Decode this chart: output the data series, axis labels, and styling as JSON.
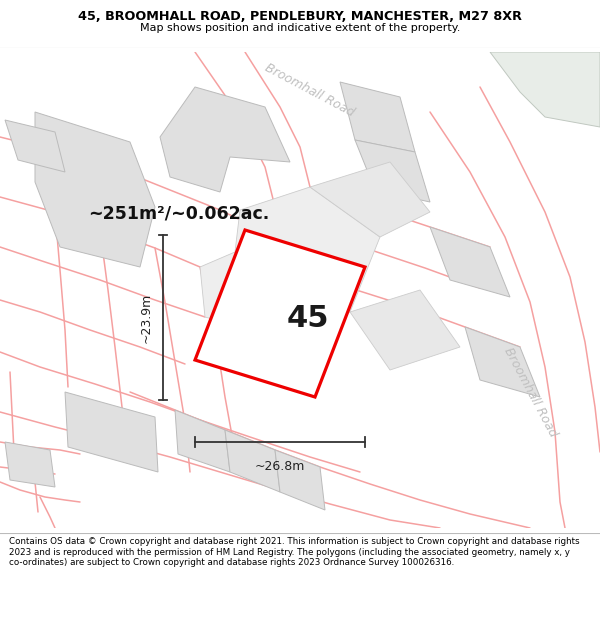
{
  "title": "45, BROOMHALL ROAD, PENDLEBURY, MANCHESTER, M27 8XR",
  "subtitle": "Map shows position and indicative extent of the property.",
  "footer": "Contains OS data © Crown copyright and database right 2021. This information is subject to Crown copyright and database rights 2023 and is reproduced with the permission of HM Land Registry. The polygons (including the associated geometry, namely x, y co-ordinates) are subject to Crown copyright and database rights 2023 Ordnance Survey 100026316.",
  "map_bg": "#ffffff",
  "header_bg": "#ffffff",
  "footer_bg": "#ffffff",
  "area_label": "~251m²/~0.062ac.",
  "plot_number": "45",
  "dim_width": "~26.8m",
  "dim_height": "~23.9m",
  "road_label_top": "Broomhall Road",
  "road_label_right": "Broomhall Road",
  "highlight_color": "#ee0000",
  "highlight_fill": "#ffffff",
  "building_fill": "#e0e0e0",
  "building_stroke": "#bbbbbb",
  "road_stroke": "#f5a0a0",
  "plot_stroke": "#cccccc"
}
